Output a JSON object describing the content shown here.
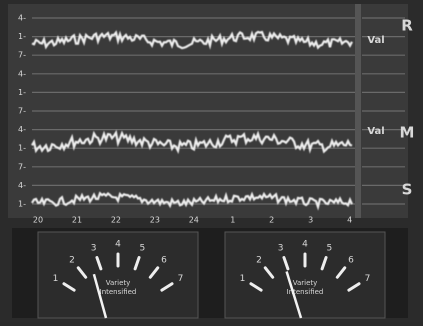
{
  "display": {
    "y_labels": [
      "4-",
      "1-",
      "7-",
      "4-",
      "1-",
      "7-",
      "4-",
      "1-",
      "7-",
      "4-",
      "1-"
    ],
    "x_labels": [
      "20",
      "21",
      "22",
      "23",
      "24",
      "1",
      "2",
      "3",
      "4"
    ],
    "side_letters": [
      "R",
      "M",
      "S"
    ],
    "side_tags": [
      "Val",
      "Val"
    ]
  },
  "meters": [
    {
      "scale": [
        "1",
        "2",
        "3",
        "4",
        "5",
        "6",
        "7"
      ],
      "caption": [
        "Variety",
        "Intensified"
      ]
    },
    {
      "scale": [
        "1",
        "2",
        "3",
        "4",
        "5",
        "6",
        "7"
      ],
      "caption": [
        "Variety",
        "Intensified"
      ]
    }
  ]
}
